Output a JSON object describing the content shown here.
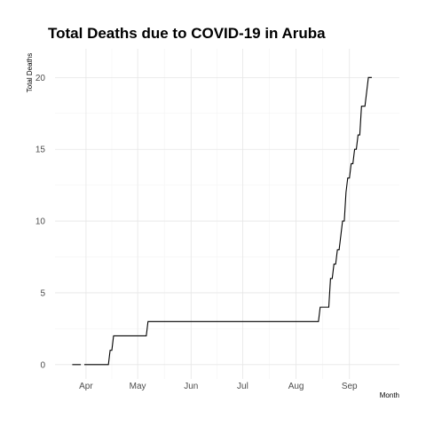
{
  "chart_data": {
    "type": "line",
    "title": "Total Deaths due to COVID-19 in Aruba",
    "xlabel": "Month",
    "ylabel": "Total Deaths",
    "x_ticks": [
      "Apr",
      "May",
      "Jun",
      "Jul",
      "Aug",
      "Sep"
    ],
    "y_ticks": [
      0,
      5,
      10,
      15,
      20
    ],
    "ylim": [
      -1,
      22
    ],
    "xlim": [
      "2020-03-14",
      "2020-09-30"
    ],
    "grid": true,
    "series": [
      {
        "color": "#000000",
        "segments": [
          {
            "x": [
              "2020-03-24",
              "2020-03-29"
            ],
            "y": [
              0,
              0
            ]
          },
          {
            "x": [
              "2020-03-31",
              "2020-04-14",
              "2020-04-15",
              "2020-04-16",
              "2020-04-17",
              "2020-05-06",
              "2020-05-07",
              "2020-08-14",
              "2020-08-15",
              "2020-08-20",
              "2020-08-21",
              "2020-08-22",
              "2020-08-23",
              "2020-08-24",
              "2020-08-25",
              "2020-08-26",
              "2020-08-27",
              "2020-08-28",
              "2020-08-29",
              "2020-08-30",
              "2020-08-31",
              "2020-09-01",
              "2020-09-02",
              "2020-09-03",
              "2020-09-04",
              "2020-09-05",
              "2020-09-06",
              "2020-09-07",
              "2020-09-08",
              "2020-09-09",
              "2020-09-10",
              "2020-09-11",
              "2020-09-12",
              "2020-09-13",
              "2020-09-14"
            ],
            "y": [
              0,
              0,
              1,
              1,
              2,
              2,
              3,
              3,
              4,
              4,
              6,
              6,
              7,
              7,
              8,
              8,
              9,
              10,
              10,
              12,
              13,
              13,
              14,
              14,
              15,
              15,
              16,
              16,
              18,
              18,
              18,
              19,
              20,
              20,
              20
            ]
          }
        ]
      }
    ]
  }
}
